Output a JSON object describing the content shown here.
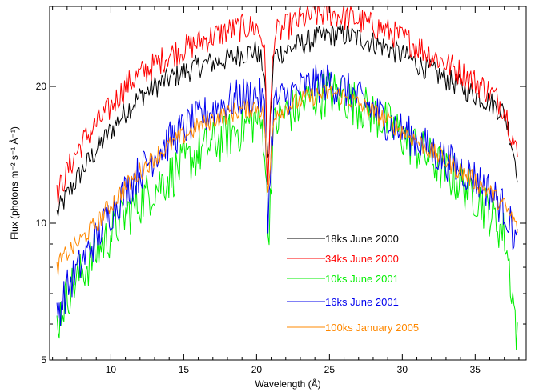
{
  "chart_data": {
    "type": "line",
    "title": "",
    "xlabel": "Wavelength (Å)",
    "ylabel": "Flux (photons m⁻² s⁻¹ Å⁻¹)",
    "xlim": [
      5.8,
      38.5
    ],
    "ylim": [
      5,
      30
    ],
    "yscale": "log",
    "x_ticks": [
      "10",
      "15",
      "20",
      "25",
      "30",
      "35"
    ],
    "y_ticks": [
      "5",
      "10",
      "20"
    ],
    "grid": false,
    "legend": "center-right",
    "series": [
      {
        "name": "18ks June 2000",
        "color": "#000000",
        "x": [
          6.3,
          7,
          8,
          9,
          10,
          11,
          12,
          13,
          14,
          15,
          16,
          17,
          18,
          19,
          20,
          20.5,
          20.8,
          21.2,
          22,
          23,
          24,
          25,
          26,
          27,
          28,
          29,
          30,
          31,
          32,
          33,
          34,
          35,
          36,
          37,
          37.9
        ],
        "y": [
          10.5,
          11.5,
          13,
          14.5,
          16,
          17.6,
          19,
          20,
          20.8,
          21.5,
          22.2,
          22.6,
          23,
          23.6,
          24,
          22,
          13,
          23.5,
          24,
          24.8,
          25.5,
          26,
          26,
          25.6,
          25,
          24.3,
          23.5,
          22.5,
          21.6,
          20.8,
          20,
          19.2,
          18.5,
          17.5,
          13
        ]
      },
      {
        "name": "34ks June 2000",
        "color": "#ff0000",
        "x": [
          6.3,
          7,
          8,
          9,
          10,
          11,
          12,
          13,
          14,
          15,
          16,
          17,
          18,
          19,
          20,
          20.5,
          20.8,
          21.2,
          22,
          23,
          24,
          25,
          26,
          27,
          28,
          29,
          30,
          31,
          32,
          33,
          34,
          35,
          36,
          37,
          37.9
        ],
        "y": [
          11.5,
          13,
          15,
          16.5,
          18,
          20,
          21.3,
          22.3,
          23.5,
          24.2,
          25,
          25.8,
          26.5,
          27,
          27,
          25,
          12,
          26,
          27,
          28,
          28.7,
          29,
          28.5,
          28,
          27.2,
          26.5,
          25.6,
          24.6,
          23.5,
          22.5,
          21.5,
          20.5,
          19.5,
          18,
          14
        ]
      },
      {
        "name": "10ks June 2001",
        "color": "#00ee00",
        "x": [
          6.3,
          7,
          8,
          9,
          10,
          11,
          12,
          13,
          14,
          15,
          16,
          17,
          18,
          19,
          20,
          20.5,
          20.8,
          21.2,
          22,
          23,
          24,
          25,
          26,
          27,
          28,
          29,
          30,
          31,
          32,
          33,
          34,
          35,
          36,
          37,
          37.9
        ],
        "y": [
          6,
          7,
          7.8,
          8.6,
          9.5,
          10.4,
          11.2,
          12,
          12.7,
          13.5,
          14.3,
          15,
          15.6,
          16.3,
          17,
          16,
          9,
          16.5,
          17.5,
          18.2,
          19,
          19.5,
          19,
          18.3,
          17.5,
          16.6,
          15.6,
          14.7,
          13.8,
          13,
          12.3,
          11.6,
          10.6,
          9.5,
          5.5
        ]
      },
      {
        "name": "16ks June 2001",
        "color": "#0000ee",
        "x": [
          6.3,
          7,
          8,
          9,
          10,
          11,
          12,
          13,
          14,
          15,
          16,
          17,
          18,
          19,
          20,
          20.5,
          20.8,
          21.2,
          22,
          23,
          24,
          25,
          26,
          27,
          28,
          29,
          30,
          31,
          32,
          33,
          34,
          35,
          36,
          37,
          37.9
        ],
        "y": [
          6.3,
          7.2,
          8.2,
          9.3,
          10.6,
          11.8,
          13,
          14.2,
          15.2,
          16.2,
          17,
          17.8,
          18.5,
          19,
          19.3,
          18.5,
          10,
          18.5,
          19,
          19.8,
          20.3,
          20.5,
          19.8,
          18.8,
          17.8,
          16.8,
          16,
          15.3,
          14.5,
          13.8,
          13.2,
          12.6,
          11.8,
          10.8,
          9
        ]
      },
      {
        "name": "100ks January 2005",
        "color": "#ff8800",
        "x": [
          6.3,
          7,
          8,
          9,
          10,
          11,
          12,
          13,
          14,
          15,
          16,
          17,
          18,
          19,
          20,
          20.5,
          20.8,
          21.2,
          22,
          23,
          24,
          25,
          26,
          27,
          28,
          29,
          30,
          31,
          32,
          33,
          34,
          35,
          36,
          37,
          37.9
        ],
        "y": [
          8,
          8.6,
          9.2,
          10,
          11,
          12,
          13,
          14,
          14.8,
          15.6,
          16.3,
          16.9,
          17.4,
          17.8,
          18.1,
          17.6,
          11,
          17.5,
          18,
          18.6,
          19.1,
          19.4,
          19,
          18.3,
          17.6,
          16.8,
          16,
          15.2,
          14.4,
          13.7,
          13,
          12.4,
          11.7,
          10.9,
          9.8
        ]
      }
    ]
  }
}
